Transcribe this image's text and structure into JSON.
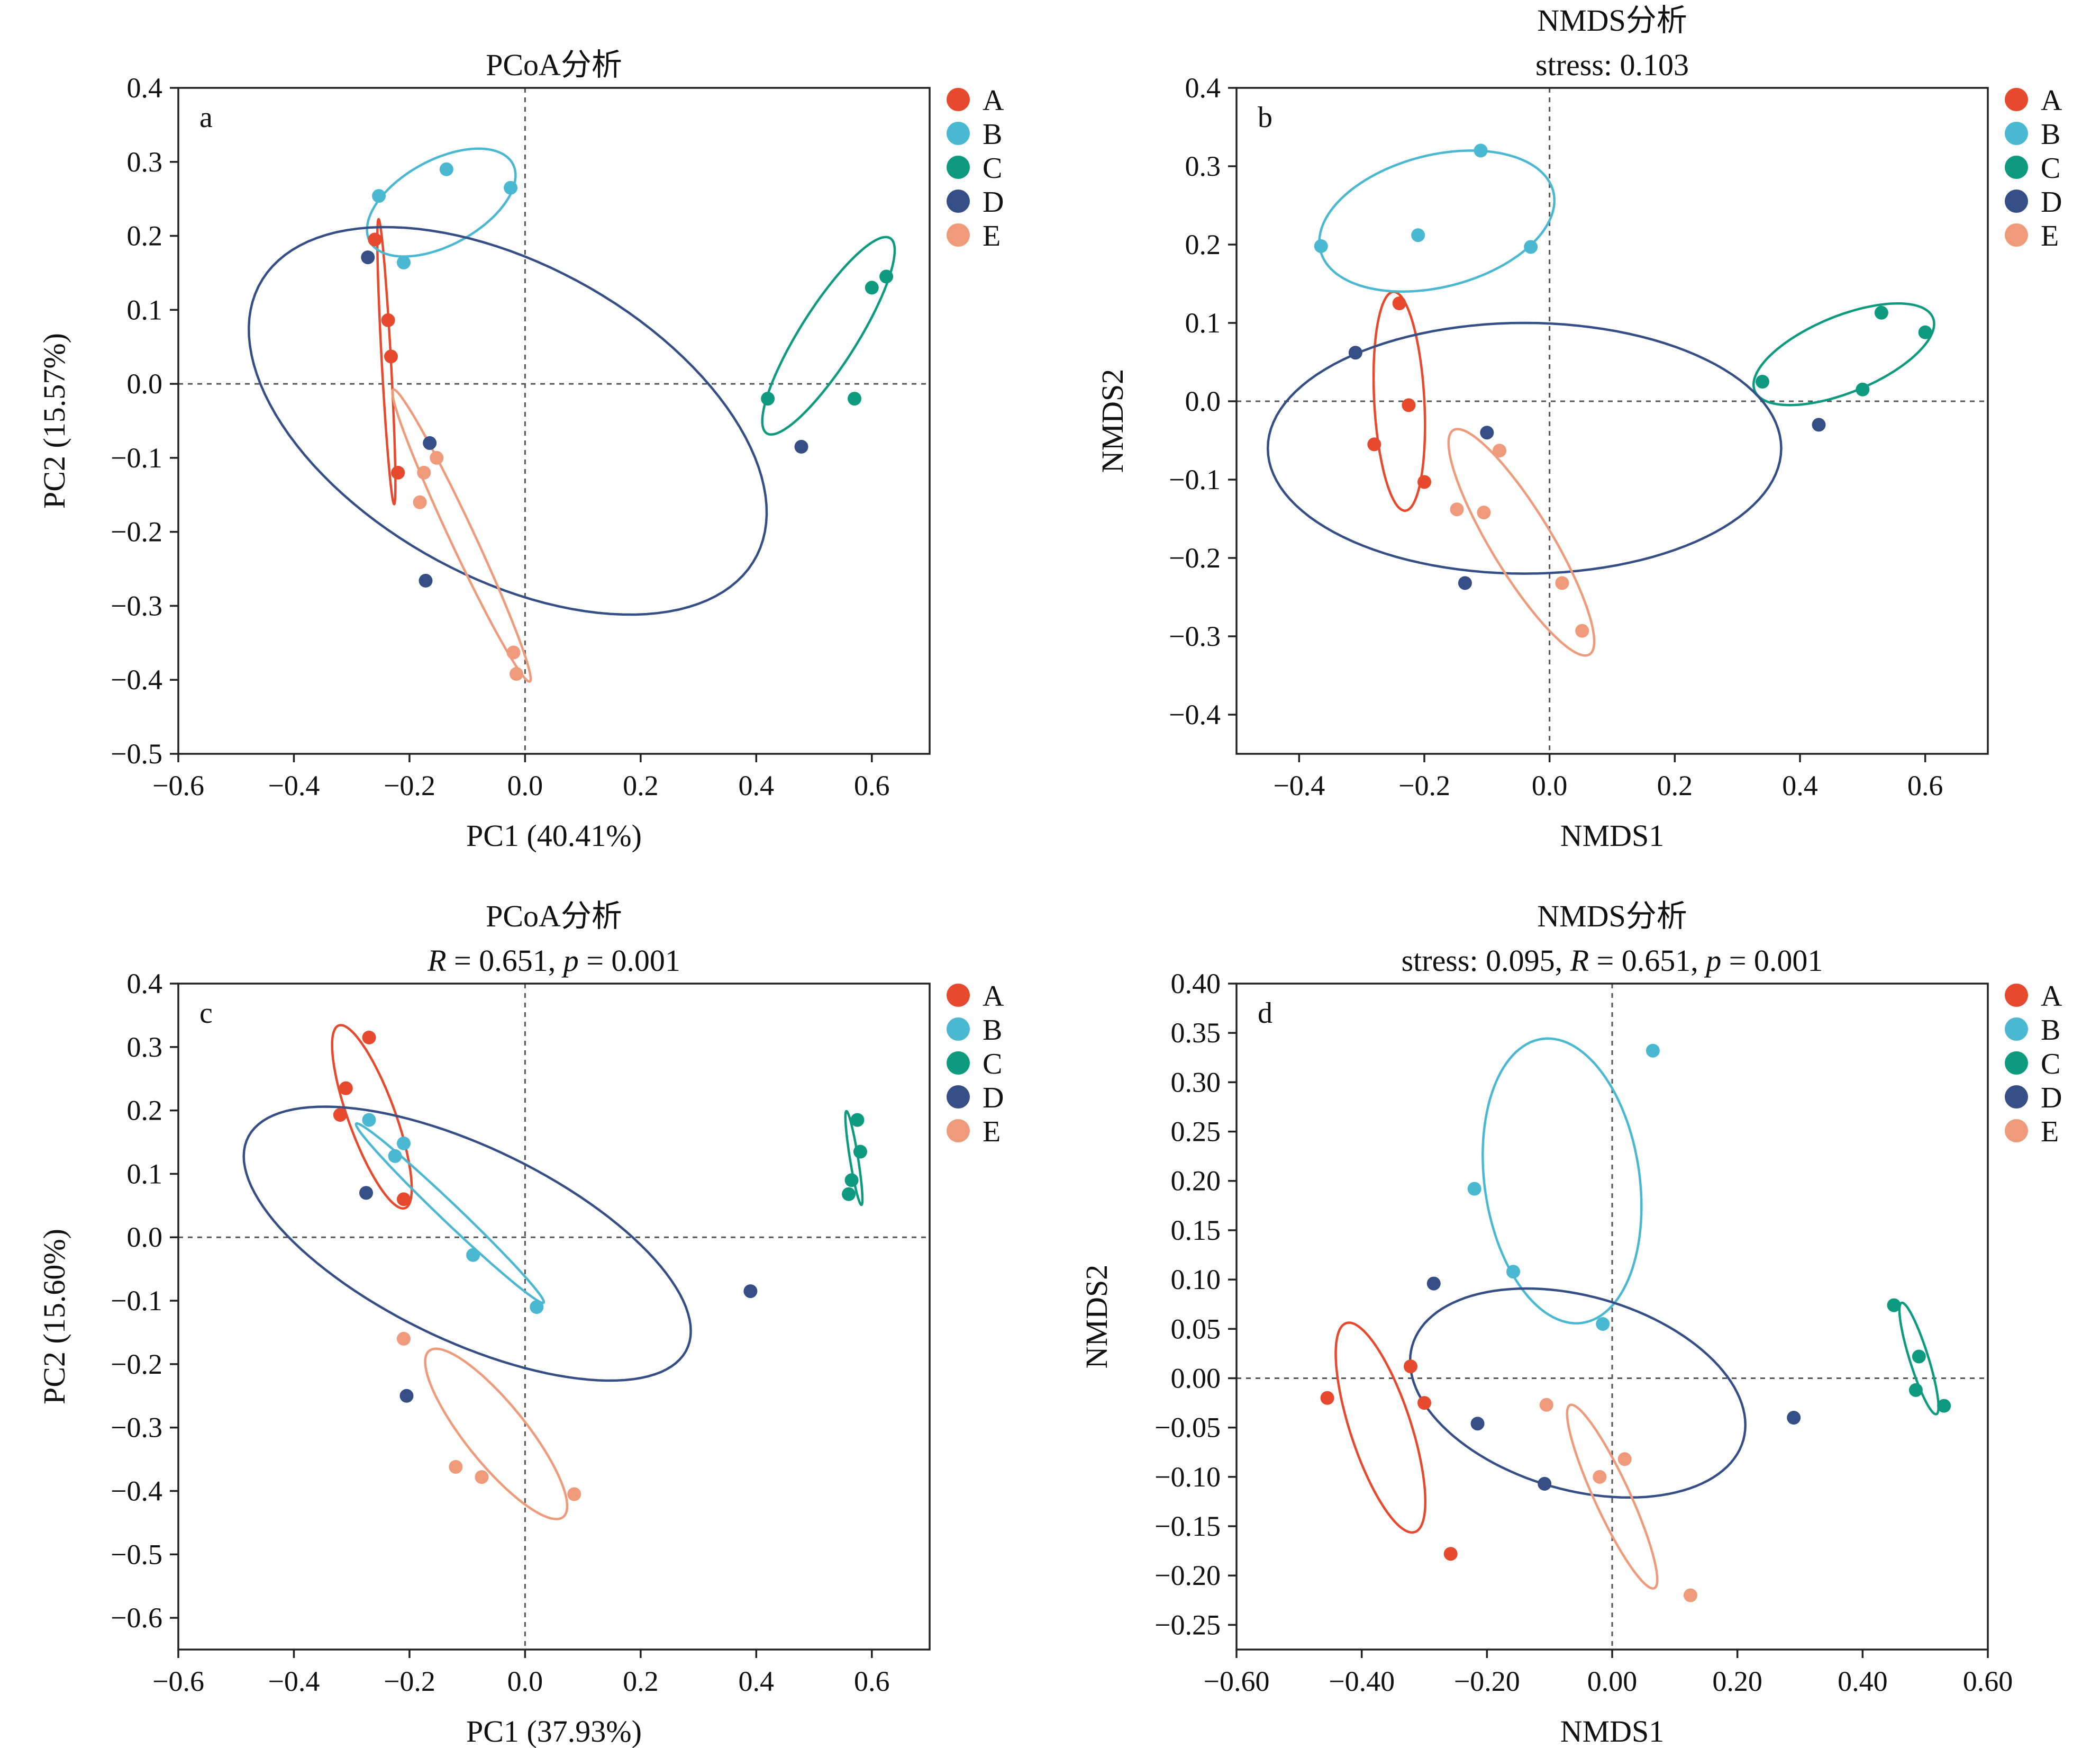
{
  "colors": {
    "A": "#e6492d",
    "B": "#4bb8d1",
    "C": "#0d9a7e",
    "D": "#354f86",
    "E": "#ef9a7a",
    "axis": "#222222",
    "zeroline": "#555555"
  },
  "chart_data": [
    {
      "type": "scatter",
      "panel_label": "a",
      "title_lines": [
        {
          "text": "PCoA分析"
        }
      ],
      "xlabel": "PC1 (40.41%)",
      "ylabel": "PC2 (15.57%)",
      "xlim": [
        -0.6,
        0.7
      ],
      "ylim": [
        -0.5,
        0.4
      ],
      "xticks": [
        -0.6,
        -0.4,
        -0.2,
        0.0,
        0.2,
        0.4,
        0.6
      ],
      "yticks": [
        -0.5,
        -0.4,
        -0.3,
        -0.2,
        -0.1,
        0.0,
        0.1,
        0.2,
        0.3,
        0.4
      ],
      "tick_decimals": 1,
      "zero_lines": true,
      "legend_position": "right",
      "series": [
        {
          "name": "A",
          "points": [
            [
              -0.26,
              0.195
            ],
            [
              -0.237,
              0.086
            ],
            [
              -0.232,
              0.037
            ],
            [
              -0.22,
              -0.12
            ]
          ],
          "ellipse": {
            "cx": -0.24,
            "cy": 0.03,
            "rx": 0.193,
            "ry": 0.008,
            "angle": -86
          }
        },
        {
          "name": "B",
          "points": [
            [
              -0.253,
              0.254
            ],
            [
              -0.136,
              0.29
            ],
            [
              -0.025,
              0.265
            ],
            [
              -0.21,
              0.164
            ]
          ],
          "ellipse": {
            "cx": -0.145,
            "cy": 0.245,
            "rx": 0.135,
            "ry": 0.06,
            "angle": 20
          }
        },
        {
          "name": "C",
          "points": [
            [
              0.42,
              -0.02
            ],
            [
              0.57,
              -0.02
            ],
            [
              0.6,
              0.13
            ],
            [
              0.625,
              0.145
            ]
          ],
          "ellipse": {
            "cx": 0.525,
            "cy": 0.065,
            "rx": 0.17,
            "ry": 0.045,
            "angle": 50
          }
        },
        {
          "name": "D",
          "points": [
            [
              -0.272,
              0.171
            ],
            [
              -0.165,
              -0.08
            ],
            [
              -0.172,
              -0.266
            ],
            [
              0.478,
              -0.085
            ]
          ],
          "ellipse": {
            "cx": -0.03,
            "cy": -0.05,
            "rx": 0.47,
            "ry": 0.22,
            "angle": -20
          }
        },
        {
          "name": "E",
          "points": [
            [
              -0.153,
              -0.1
            ],
            [
              -0.175,
              -0.12
            ],
            [
              -0.182,
              -0.16
            ],
            [
              -0.02,
              -0.363
            ],
            [
              -0.015,
              -0.392
            ]
          ],
          "ellipse": {
            "cx": -0.11,
            "cy": -0.205,
            "rx": 0.23,
            "ry": 0.02,
            "angle": -59
          }
        }
      ]
    },
    {
      "type": "scatter",
      "panel_label": "b",
      "title_lines": [
        {
          "text": "NMDS分析"
        },
        {
          "text": "stress: 0.103"
        }
      ],
      "xlabel": "NMDS1",
      "ylabel": "NMDS2",
      "xlim": [
        -0.5,
        0.7
      ],
      "ylim": [
        -0.45,
        0.4
      ],
      "xticks": [
        -0.4,
        -0.2,
        0.0,
        0.2,
        0.4,
        0.6
      ],
      "yticks": [
        -0.4,
        -0.3,
        -0.2,
        -0.1,
        0.0,
        0.1,
        0.2,
        0.3,
        0.4
      ],
      "tick_decimals": 1,
      "zero_lines": true,
      "legend_position": "right",
      "series": [
        {
          "name": "A",
          "points": [
            [
              -0.24,
              0.125
            ],
            [
              -0.225,
              -0.005
            ],
            [
              -0.28,
              -0.055
            ],
            [
              -0.2,
              -0.103
            ]
          ],
          "ellipse": {
            "cx": -0.24,
            "cy": 0.0,
            "rx": 0.14,
            "ry": 0.04,
            "angle": -86
          }
        },
        {
          "name": "B",
          "points": [
            [
              -0.365,
              0.198
            ],
            [
              -0.21,
              0.212
            ],
            [
              -0.11,
              0.32
            ],
            [
              -0.03,
              0.197
            ]
          ],
          "ellipse": {
            "cx": -0.18,
            "cy": 0.23,
            "rx": 0.19,
            "ry": 0.085,
            "angle": 10
          }
        },
        {
          "name": "C",
          "points": [
            [
              0.34,
              0.025
            ],
            [
              0.53,
              0.113
            ],
            [
              0.5,
              0.015
            ],
            [
              0.6,
              0.088
            ]
          ],
          "ellipse": {
            "cx": 0.47,
            "cy": 0.06,
            "rx": 0.15,
            "ry": 0.05,
            "angle": 17
          }
        },
        {
          "name": "D",
          "points": [
            [
              -0.31,
              0.062
            ],
            [
              -0.1,
              -0.04
            ],
            [
              -0.135,
              -0.232
            ],
            [
              0.43,
              -0.03
            ]
          ],
          "ellipse": {
            "cx": -0.04,
            "cy": -0.06,
            "rx": 0.41,
            "ry": 0.16,
            "angle": 0
          }
        },
        {
          "name": "E",
          "points": [
            [
              -0.08,
              -0.063
            ],
            [
              -0.148,
              -0.138
            ],
            [
              -0.105,
              -0.142
            ],
            [
              0.02,
              -0.232
            ],
            [
              0.052,
              -0.293
            ]
          ],
          "ellipse": {
            "cx": -0.045,
            "cy": -0.18,
            "rx": 0.18,
            "ry": 0.045,
            "angle": -52
          }
        }
      ]
    },
    {
      "type": "scatter",
      "panel_label": "c",
      "title_lines": [
        {
          "text": "PCoA分析"
        },
        {
          "parts": [
            {
              "t": "R",
              "i": true
            },
            {
              "t": " = 0.651, "
            },
            {
              "t": "p",
              "i": true
            },
            {
              "t": " = 0.001"
            }
          ]
        }
      ],
      "xlabel": "PC1 (37.93%)",
      "ylabel": "PC2 (15.60%)",
      "xlim": [
        -0.6,
        0.7
      ],
      "ylim": [
        -0.65,
        0.4
      ],
      "xticks": [
        -0.6,
        -0.4,
        -0.2,
        0.0,
        0.2,
        0.4,
        0.6
      ],
      "yticks": [
        -0.6,
        -0.5,
        -0.4,
        -0.3,
        -0.2,
        -0.1,
        0.0,
        0.1,
        0.2,
        0.3,
        0.4
      ],
      "tick_decimals": 1,
      "zero_lines": true,
      "legend_position": "right",
      "series": [
        {
          "name": "A",
          "points": [
            [
              -0.27,
              0.315
            ],
            [
              -0.31,
              0.235
            ],
            [
              -0.32,
              0.193
            ],
            [
              -0.21,
              0.06
            ]
          ],
          "ellipse": {
            "cx": -0.265,
            "cy": 0.19,
            "rx": 0.155,
            "ry": 0.04,
            "angle": -68
          }
        },
        {
          "name": "B",
          "points": [
            [
              -0.27,
              0.185
            ],
            [
              -0.21,
              0.148
            ],
            [
              -0.225,
              0.128
            ],
            [
              -0.09,
              -0.028
            ],
            [
              0.02,
              -0.11
            ]
          ],
          "ellipse": {
            "cx": -0.13,
            "cy": 0.038,
            "rx": 0.215,
            "ry": 0.015,
            "angle": -41
          }
        },
        {
          "name": "C",
          "points": [
            [
              0.575,
              0.185
            ],
            [
              0.58,
              0.135
            ],
            [
              0.565,
              0.09
            ],
            [
              0.56,
              0.068
            ]
          ],
          "ellipse": {
            "cx": 0.569,
            "cy": 0.125,
            "rx": 0.075,
            "ry": 0.007,
            "angle": -80
          }
        },
        {
          "name": "D",
          "points": [
            [
              -0.275,
              0.07
            ],
            [
              -0.205,
              -0.25
            ],
            [
              0.39,
              -0.085
            ]
          ],
          "ellipse": {
            "cx": -0.1,
            "cy": -0.01,
            "rx": 0.415,
            "ry": 0.155,
            "angle": -23
          }
        },
        {
          "name": "E",
          "points": [
            [
              -0.21,
              -0.16
            ],
            [
              -0.12,
              -0.362
            ],
            [
              -0.075,
              -0.378
            ],
            [
              0.085,
              -0.405
            ]
          ],
          "ellipse": {
            "cx": -0.05,
            "cy": -0.31,
            "rx": 0.175,
            "ry": 0.05,
            "angle": -48
          }
        }
      ]
    },
    {
      "type": "scatter",
      "panel_label": "d",
      "title_lines": [
        {
          "text": "NMDS分析"
        },
        {
          "parts": [
            {
              "t": "stress: 0.095, "
            },
            {
              "t": "R",
              "i": true
            },
            {
              "t": " = 0.651, "
            },
            {
              "t": "p",
              "i": true
            },
            {
              "t": " = 0.001"
            }
          ]
        }
      ],
      "xlabel": "NMDS1",
      "ylabel": "NMDS2",
      "xlim": [
        -0.6,
        0.6
      ],
      "ylim": [
        -0.275,
        0.4
      ],
      "xticks": [
        -0.6,
        -0.4,
        -0.2,
        0.0,
        0.2,
        0.4,
        0.6
      ],
      "yticks": [
        -0.25,
        -0.2,
        -0.15,
        -0.1,
        -0.05,
        0.0,
        0.05,
        0.1,
        0.15,
        0.2,
        0.25,
        0.3,
        0.35,
        0.4
      ],
      "tick_decimals": 2,
      "zero_lines": true,
      "legend_position": "right",
      "series": [
        {
          "name": "A",
          "points": [
            [
              -0.455,
              -0.02
            ],
            [
              -0.322,
              0.012
            ],
            [
              -0.3,
              -0.025
            ],
            [
              -0.258,
              -0.178
            ]
          ],
          "ellipse": {
            "cx": -0.37,
            "cy": -0.05,
            "rx": 0.12,
            "ry": 0.045,
            "angle": -60
          }
        },
        {
          "name": "B",
          "points": [
            [
              -0.22,
              0.192
            ],
            [
              -0.158,
              0.108
            ],
            [
              0.065,
              0.332
            ],
            [
              -0.015,
              0.055
            ]
          ],
          "ellipse": {
            "cx": -0.08,
            "cy": 0.2,
            "rx": 0.15,
            "ry": 0.12,
            "angle": -63
          }
        },
        {
          "name": "C",
          "points": [
            [
              0.45,
              0.074
            ],
            [
              0.49,
              0.022
            ],
            [
              0.485,
              -0.012
            ],
            [
              0.53,
              -0.028
            ]
          ],
          "ellipse": {
            "cx": 0.49,
            "cy": 0.02,
            "rx": 0.063,
            "ry": 0.014,
            "angle": -63
          }
        },
        {
          "name": "D",
          "points": [
            [
              -0.285,
              0.096
            ],
            [
              -0.215,
              -0.046
            ],
            [
              -0.108,
              -0.107
            ],
            [
              0.29,
              -0.04
            ]
          ],
          "ellipse": {
            "cx": -0.055,
            "cy": -0.015,
            "rx": 0.27,
            "ry": 0.1,
            "angle": -8
          }
        },
        {
          "name": "E",
          "points": [
            [
              -0.105,
              -0.027
            ],
            [
              0.02,
              -0.082
            ],
            [
              -0.02,
              -0.1
            ],
            [
              0.125,
              -0.22
            ]
          ],
          "ellipse": {
            "cx": 0.0,
            "cy": -0.12,
            "rx": 0.115,
            "ry": 0.025,
            "angle": -53
          }
        }
      ]
    }
  ]
}
